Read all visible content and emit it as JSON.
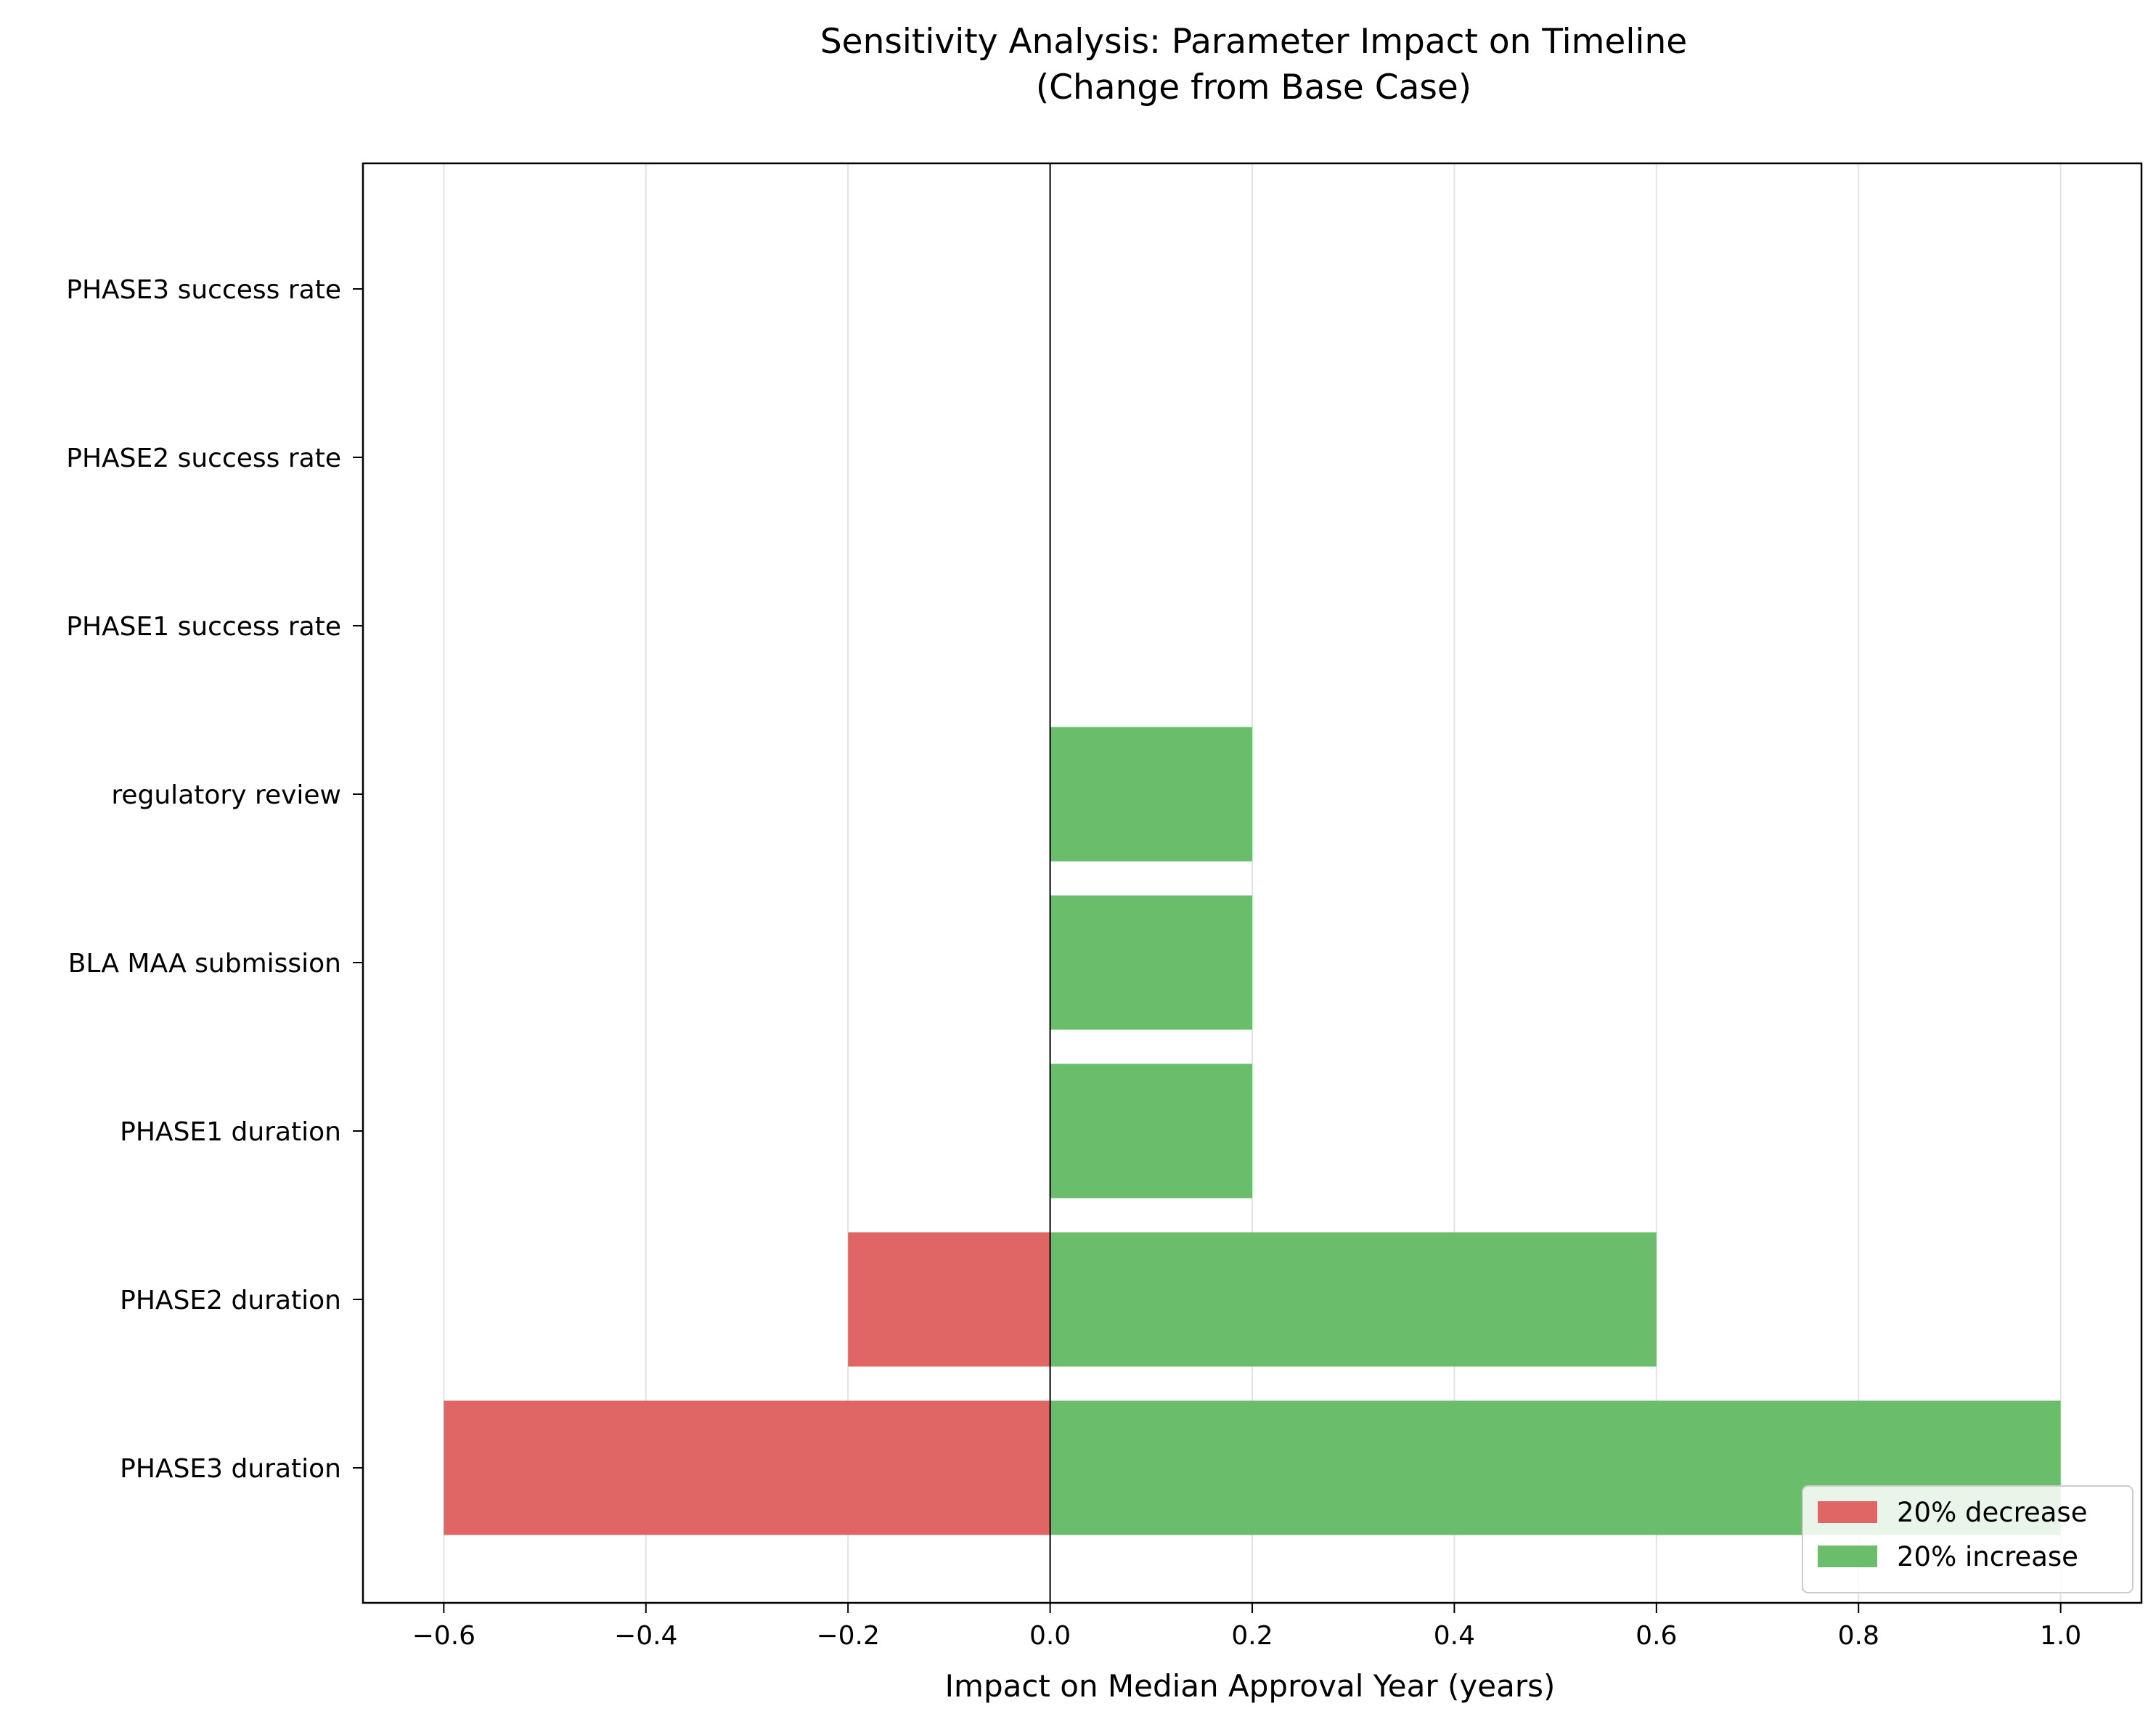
{
  "chart_data": {
    "type": "bar",
    "orientation": "horizontal",
    "title_lines": [
      "Sensitivity Analysis: Parameter Impact on Timeline",
      "(Change from Base Case)"
    ],
    "xlabel": "Impact on Median Approval Year (years)",
    "ylabel": "",
    "xlim": [
      -0.68,
      1.08
    ],
    "xticks": [
      -0.6,
      -0.4,
      -0.2,
      0.0,
      0.2,
      0.4,
      0.6,
      0.8,
      1.0
    ],
    "xtick_labels": [
      "−0.6",
      "−0.4",
      "−0.2",
      "0.0",
      "0.2",
      "0.4",
      "0.6",
      "0.8",
      "1.0"
    ],
    "categories": [
      "PHASE3 duration",
      "PHASE2 duration",
      "PHASE1 duration",
      "BLA MAA submission",
      "regulatory review",
      "PHASE1 success rate",
      "PHASE2 success rate",
      "PHASE3 success rate"
    ],
    "series": [
      {
        "name": "20% decrease",
        "color": "#e06666",
        "values": [
          -0.6,
          -0.2,
          0,
          0,
          0,
          0,
          0,
          0
        ]
      },
      {
        "name": "20% increase",
        "color": "#6abd6a",
        "values": [
          1.0,
          0.6,
          0.2,
          0.2,
          0.2,
          0,
          0,
          0
        ]
      }
    ],
    "grid": "vertical",
    "legend_position": "lower-right"
  }
}
